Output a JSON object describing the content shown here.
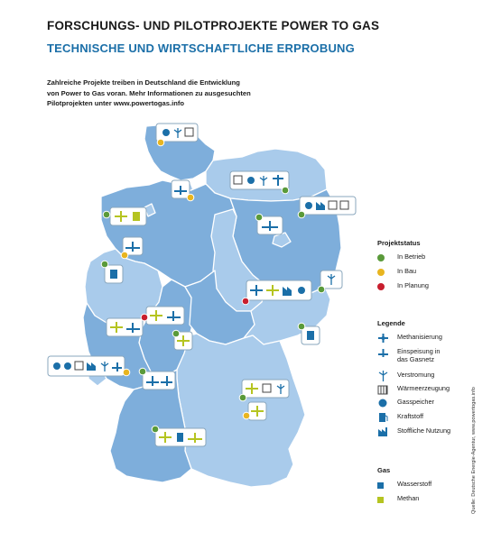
{
  "header": {
    "title": "FORSCHUNGS- UND PILOTPROJEKTE POWER TO GAS",
    "subtitle": "TECHNISCHE UND WIRTSCHAFTLICHE ERPROBUNG",
    "intro_lines": [
      "Zahlreiche Projekte treiben in Deutschland die Entwicklung",
      "von Power to Gas voran. Mehr Informationen zu ausgesuchten",
      "Pilotprojekten unter www.powertogas.info"
    ]
  },
  "status_legend": {
    "title": "Projektstatus",
    "items": [
      {
        "label": "In Betrieb",
        "color": "#5a9a3a"
      },
      {
        "label": "In Bau",
        "color": "#e8b520"
      },
      {
        "label": "In Planung",
        "color": "#c81e2e"
      }
    ]
  },
  "legend": {
    "title": "Legende",
    "items": [
      {
        "icon": "methanisierung-icon",
        "lines": [
          "Methanisierung"
        ]
      },
      {
        "icon": "einspeisung-icon",
        "lines": [
          "Einspeisung in",
          "das Gasnetz"
        ]
      },
      {
        "icon": "wind-turbine-icon",
        "lines": [
          "Verstromung"
        ]
      },
      {
        "icon": "radiator-icon",
        "lines": [
          "Wärmeerzeugung"
        ]
      },
      {
        "icon": "gas-storage-icon",
        "lines": [
          "Gasspeicher"
        ]
      },
      {
        "icon": "fuel-pump-icon",
        "lines": [
          "Kraftstoff"
        ]
      },
      {
        "icon": "factory-icon",
        "lines": [
          "Stoffliche Nutzung"
        ]
      }
    ]
  },
  "gas_legend": {
    "title": "Gas",
    "items": [
      {
        "label": "Wasserstoff",
        "color": "#1b6fa8"
      },
      {
        "label": "Methan",
        "color": "#b5c421"
      }
    ]
  },
  "colors": {
    "state_dark": "#7eaedb",
    "state_light": "#a9cbeb",
    "border": "#ffffff",
    "hydrogen_blue": "#1b6fa8",
    "methane_green": "#b5c421"
  },
  "source": "Quelle: Deutsche Energie-Agentur, www.powertogas.info"
}
